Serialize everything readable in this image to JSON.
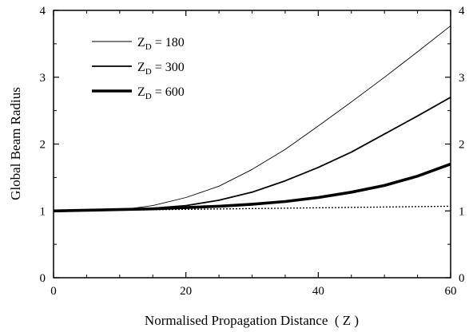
{
  "chart_data": {
    "type": "line",
    "xlabel": "Normalised Propagation Distance  ( Z )",
    "ylabel": "Global Beam Radius",
    "xlim": [
      0,
      60
    ],
    "ylim": [
      0,
      4
    ],
    "xticks": [
      0,
      20,
      40,
      60
    ],
    "yticks": [
      0,
      1,
      2,
      3,
      4
    ],
    "legend_position": "top-left",
    "series": [
      {
        "name": "ZD = 180",
        "legend_main": "Z",
        "legend_sub": "D",
        "legend_rest": " = 180",
        "style": "thin",
        "x": [
          0,
          5,
          10,
          12,
          15,
          20,
          25,
          30,
          35,
          40,
          45,
          50,
          55,
          60
        ],
        "y": [
          1.0,
          1.01,
          1.02,
          1.04,
          1.08,
          1.2,
          1.37,
          1.62,
          1.92,
          2.27,
          2.63,
          3.0,
          3.38,
          3.77
        ]
      },
      {
        "name": "ZD = 300",
        "legend_main": "Z",
        "legend_sub": "D",
        "legend_rest": " = 300",
        "style": "medium",
        "x": [
          0,
          5,
          10,
          15,
          20,
          25,
          30,
          35,
          40,
          45,
          50,
          55,
          60
        ],
        "y": [
          1.0,
          1.01,
          1.02,
          1.04,
          1.08,
          1.16,
          1.28,
          1.45,
          1.65,
          1.88,
          2.15,
          2.42,
          2.7
        ]
      },
      {
        "name": "ZD = 600",
        "legend_main": "Z",
        "legend_sub": "D",
        "legend_rest": " = 600",
        "style": "thick",
        "x": [
          0,
          5,
          10,
          15,
          20,
          25,
          30,
          35,
          40,
          45,
          50,
          55,
          60
        ],
        "y": [
          1.0,
          1.01,
          1.02,
          1.03,
          1.05,
          1.07,
          1.1,
          1.14,
          1.2,
          1.28,
          1.38,
          1.52,
          1.7
        ]
      },
      {
        "name": "",
        "style": "dotted",
        "x": [
          0,
          60
        ],
        "y": [
          1.0,
          1.07
        ]
      }
    ]
  }
}
